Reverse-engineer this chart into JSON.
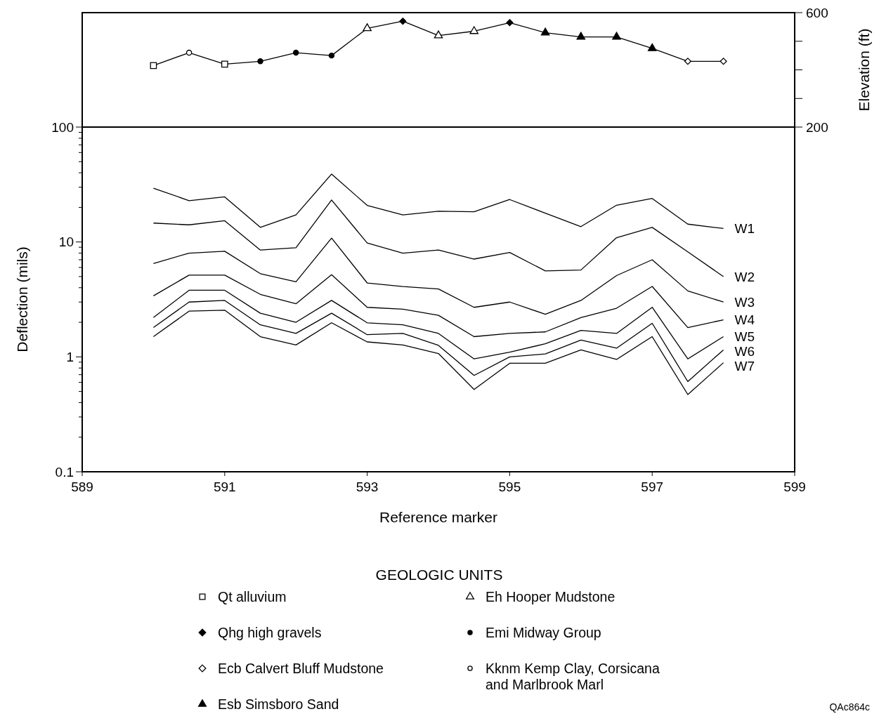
{
  "chart_data": [
    {
      "type": "line",
      "xlim": [
        589,
        599
      ],
      "y2lim": [
        200,
        600
      ],
      "y2ticks": [
        200,
        {
          "value": 300,
          "label": null
        },
        {
          "value": 400,
          "label": null
        },
        {
          "value": 500,
          "label": null
        },
        600
      ],
      "y2label": "Elevation (ft)",
      "tick_labels": "y2",
      "legend": "bottom",
      "legend_title": "GEOLOGIC UNITS",
      "x": [
        590,
        590.5,
        591,
        591.5,
        592,
        592.5,
        593,
        593.5,
        594,
        594.5,
        595,
        595.5,
        596,
        596.5,
        597,
        597.5,
        598
      ],
      "series": [
        {
          "axis": "y2",
          "color": "#000000",
          "marker": "none",
          "values": [
            415,
            460,
            420,
            430,
            460,
            450,
            545,
            570,
            520,
            535,
            565,
            530,
            515,
            515,
            475,
            430,
            430
          ]
        },
        {
          "type": "scatter",
          "axis": "y2",
          "name": "Qt alluvium",
          "marker": "square",
          "color": "#ffffff",
          "x": [
            590,
            591
          ],
          "values": [
            415,
            420
          ]
        },
        {
          "type": "scatter",
          "axis": "y2",
          "name": "Qhg high gravels",
          "marker": "diamond",
          "color": "#000000",
          "x": [
            593.5,
            595
          ],
          "values": [
            570,
            565
          ]
        },
        {
          "type": "scatter",
          "axis": "y2",
          "name": "Ecb Calvert Bluff Mudstone",
          "marker": "diamond",
          "color": "#ffffff",
          "x": [
            597.5,
            598
          ],
          "values": [
            430,
            430
          ]
        },
        {
          "type": "scatter",
          "axis": "y2",
          "name": "Esb Simsboro Sand",
          "marker": "triangle",
          "color": "#000000",
          "x": [
            595.5,
            596,
            596.5,
            597
          ],
          "values": [
            530,
            515,
            515,
            475
          ]
        },
        {
          "type": "scatter",
          "axis": "y2",
          "name": "Eh Hooper Mudstone",
          "marker": "triangle",
          "color": "#ffffff",
          "x": [
            593,
            594,
            594.5
          ],
          "values": [
            545,
            520,
            535
          ]
        },
        {
          "type": "scatter",
          "axis": "y2",
          "name": "Emi Midway Group",
          "marker": "circle",
          "color": "#000000",
          "x": [
            591.5,
            592,
            592.5
          ],
          "values": [
            430,
            460,
            450
          ]
        },
        {
          "type": "scatter",
          "axis": "y2",
          "name": "Kknm Kemp Clay, Corsicana and Marlbrook Marl",
          "marker": "circle",
          "color": "#ffffff",
          "x": [
            590.5
          ],
          "values": [
            460
          ]
        }
      ]
    },
    {
      "type": "line",
      "xlim": [
        589,
        599
      ],
      "xticks": [
        589,
        591,
        593,
        595,
        597,
        599
      ],
      "ylim": [
        0.1,
        100
      ],
      "log": true,
      "marker": "none",
      "xlabel": "Reference marker",
      "ylabel": "Deflection (mils)",
      "yticks": [
        0.1,
        {
          "value": 0.2,
          "label": null
        },
        {
          "value": 0.3,
          "label": null
        },
        {
          "value": 0.4,
          "label": null
        },
        {
          "value": 0.5,
          "label": null
        },
        {
          "value": 0.6,
          "label": null
        },
        {
          "value": 0.7,
          "label": null
        },
        {
          "value": 0.8,
          "label": null
        },
        {
          "value": 0.9,
          "label": null
        },
        1,
        {
          "value": 2,
          "label": null
        },
        {
          "value": 3,
          "label": null
        },
        {
          "value": 4,
          "label": null
        },
        {
          "value": 5,
          "label": null
        },
        {
          "value": 6,
          "label": null
        },
        {
          "value": 7,
          "label": null
        },
        {
          "value": 8,
          "label": null
        },
        {
          "value": 9,
          "label": null
        },
        10,
        {
          "value": 20,
          "label": null
        },
        {
          "value": 30,
          "label": null
        },
        {
          "value": 40,
          "label": null
        },
        {
          "value": 50,
          "label": null
        },
        {
          "value": 60,
          "label": null
        },
        {
          "value": 70,
          "label": null
        },
        {
          "value": 80,
          "label": null
        },
        {
          "value": 90,
          "label": null
        },
        100
      ],
      "x": [
        590,
        590.5,
        591,
        591.5,
        592,
        592.5,
        593,
        593.5,
        594,
        594.5,
        595,
        595.5,
        596,
        596.5,
        597,
        597.5,
        598
      ],
      "annotations": [
        "QAc864c"
      ],
      "series": [
        {
          "name": "W1",
          "color": "#000000",
          "values": [
            29.4,
            22.9,
            24.7,
            13.4,
            17.2,
            39,
            20.8,
            17.2,
            18.5,
            18.3,
            23.4,
            17.8,
            13.6,
            20.9,
            23.9,
            14.3,
            13.1
          ]
        },
        {
          "name": "W2",
          "color": "#000000",
          "values": [
            14.6,
            14.1,
            15.3,
            8.5,
            8.9,
            23.2,
            9.8,
            8,
            8.5,
            7.1,
            8.1,
            5.6,
            5.7,
            10.9,
            13.4,
            8.2,
            5
          ]
        },
        {
          "name": "W3",
          "color": "#000000",
          "values": [
            6.5,
            8,
            8.3,
            5.3,
            4.5,
            10.8,
            4.4,
            4.1,
            3.9,
            2.7,
            3,
            2.35,
            3.1,
            5.1,
            7,
            3.75,
            3
          ]
        },
        {
          "name": "W4",
          "color": "#000000",
          "values": [
            3.4,
            5.15,
            5.15,
            3.5,
            2.9,
            5.2,
            2.7,
            2.6,
            2.3,
            1.5,
            1.6,
            1.65,
            2.2,
            2.65,
            4.1,
            1.8,
            2.1
          ]
        },
        {
          "name": "W5",
          "color": "#000000",
          "values": [
            2.2,
            3.8,
            3.8,
            2.4,
            2,
            3.1,
            1.98,
            1.9,
            1.6,
            0.96,
            1.1,
            1.3,
            1.7,
            1.6,
            2.7,
            0.96,
            1.5
          ]
        },
        {
          "name": "W6",
          "color": "#000000",
          "values": [
            1.8,
            3,
            3.1,
            1.9,
            1.6,
            2.4,
            1.56,
            1.6,
            1.26,
            0.69,
            1,
            1.06,
            1.4,
            1.19,
            1.96,
            0.61,
            1.15
          ]
        },
        {
          "name": "W7",
          "color": "#000000",
          "values": [
            1.5,
            2.5,
            2.55,
            1.5,
            1.27,
            1.98,
            1.35,
            1.27,
            1.07,
            0.52,
            0.88,
            0.88,
            1.15,
            0.95,
            1.5,
            0.47,
            0.89
          ]
        }
      ]
    }
  ]
}
